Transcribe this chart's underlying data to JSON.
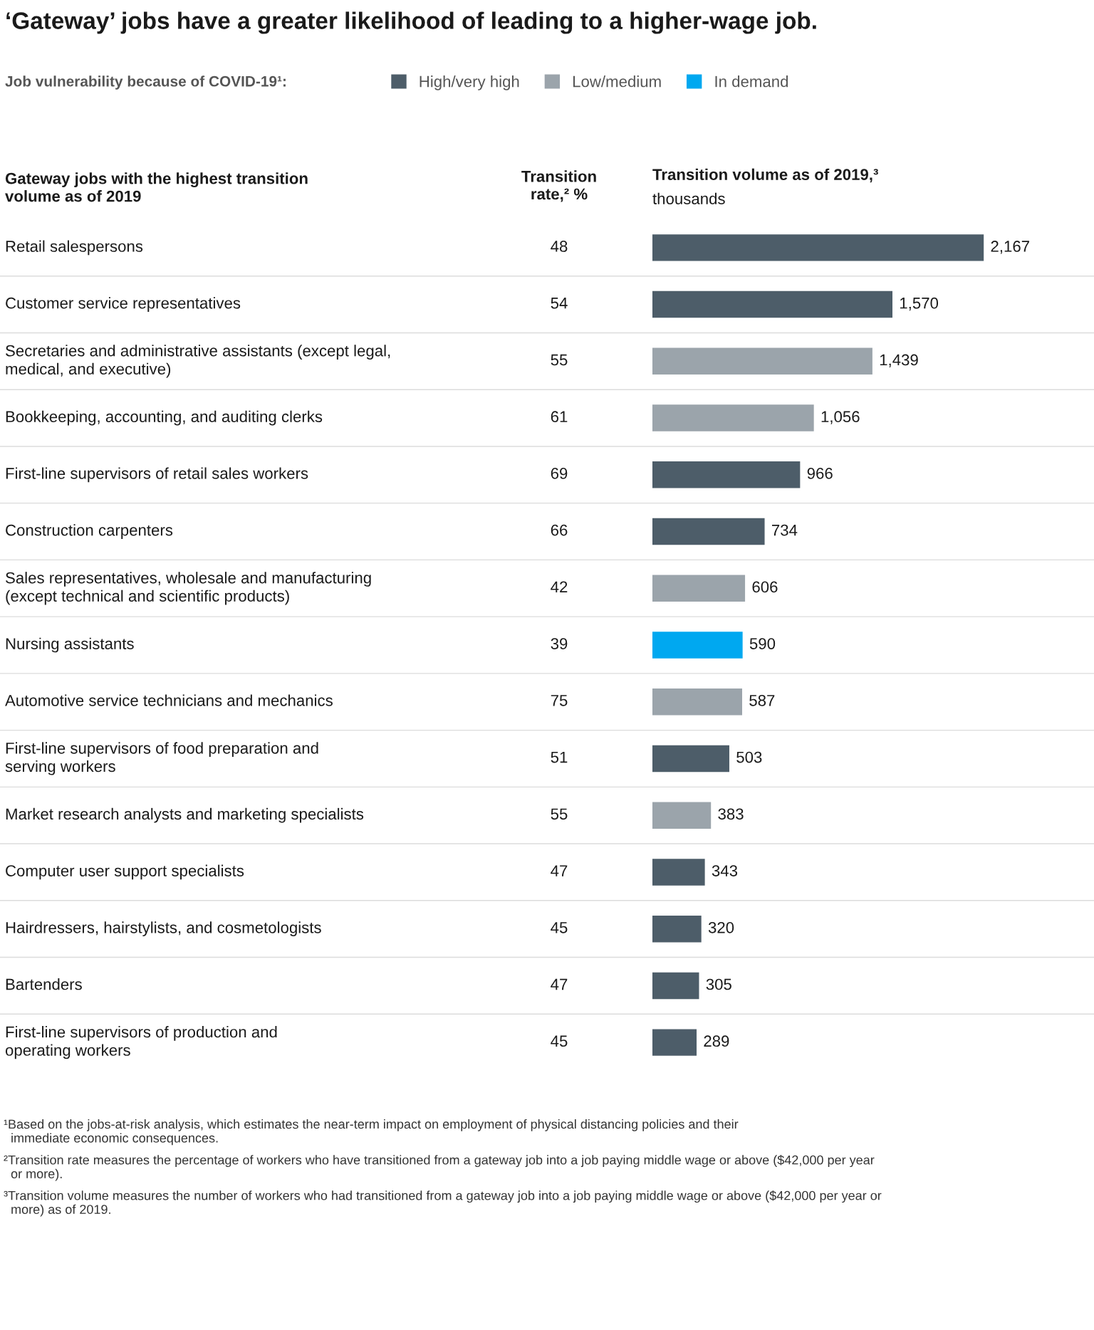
{
  "chart_data": [
    {
      "type": "other",
      "title": "‘Gateway’ jobs have a greater likelihood of leading to a higher-wage job.",
      "ylabel": "Gateway jobs with the highest transition\nvolume as of 2019",
      "xlabel": "Transition\nrate,² %",
      "values": [
        48,
        54,
        55,
        61,
        69,
        66,
        42,
        39,
        75,
        51,
        55,
        47,
        45,
        47,
        45
      ],
      "data_labels": true,
      "annotations": [
        "¹Based on the jobs-at-risk analysis, which estimates the near-term impact on employment of physical distancing policies and their\n  immediate economic consequences.",
        "²Transition rate measures the percentage of workers who have transitioned from a gateway job into a job paying middle wage or above ($42,000 per year\n  or more).",
        "³Transition volume measures the number of workers who had transitioned from a gateway job into a job paying middle wage or above ($42,000 per year or\n  more) as of 2019."
      ]
    },
    {
      "type": "bar",
      "orientation": "horizontal",
      "title": "Transition volume as of 2019,³",
      "subtitle": "thousands",
      "legend_title": "Job vulnerability because of COVID-19¹:",
      "legend": "top",
      "categories": [
        "Retail salespersons",
        "Customer service representatives",
        "Secretaries and administrative assistants (except legal,\nmedical, and executive)",
        "Bookkeeping, accounting, and auditing clerks",
        "First-line supervisors of retail sales workers",
        "Construction carpenters",
        "Sales representatives, wholesale and manufacturing\n(except technical and scientific products)",
        "Nursing assistants",
        "Automotive service technicians and mechanics",
        "First-line supervisors of food preparation and\nserving workers",
        "Market research analysts and marketing specialists",
        "Computer user support specialists",
        "Hairdressers, hairstylists, and cosmetologists",
        "Bartenders",
        "First-line supervisors of production and\noperating workers"
      ],
      "series": [
        {
          "name": "High/very high",
          "color": "#4d5d69",
          "values": [
            2167,
            1570,
            null,
            null,
            966,
            734,
            null,
            null,
            null,
            503,
            null,
            343,
            320,
            305,
            289
          ],
          "value_labels": [
            "2,167",
            "1,570",
            null,
            null,
            "966",
            "734",
            null,
            null,
            null,
            "503",
            null,
            "343",
            "320",
            "305",
            "289"
          ]
        },
        {
          "name": "Low/medium",
          "color": "#9ba4ab",
          "values": [
            null,
            null,
            1439,
            1056,
            null,
            null,
            606,
            null,
            587,
            null,
            383,
            null,
            null,
            null,
            null
          ],
          "value_labels": [
            null,
            null,
            "1,439",
            "1,056",
            null,
            null,
            "606",
            null,
            "587",
            null,
            "383",
            null,
            null,
            null,
            null
          ]
        },
        {
          "name": "In demand",
          "color": "#00a8f0",
          "values": [
            null,
            null,
            null,
            null,
            null,
            null,
            null,
            590,
            null,
            null,
            null,
            null,
            null,
            null,
            null
          ],
          "value_labels": [
            null,
            null,
            null,
            null,
            null,
            null,
            null,
            "590",
            null,
            null,
            null,
            null,
            null,
            null,
            null
          ]
        }
      ]
    }
  ]
}
